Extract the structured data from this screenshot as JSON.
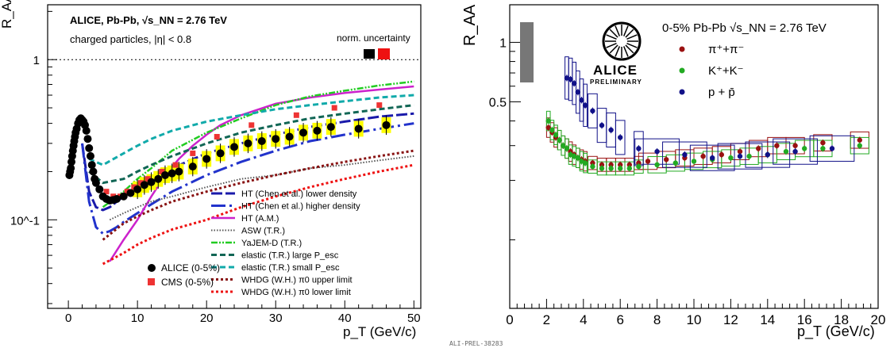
{
  "caption": "ALI-PREL-38283",
  "chart_data": [
    {
      "type": "scatter",
      "title": "ALICE, Pb-Pb, √s_NN = 2.76 TeV",
      "subtitle": "charged particles, |η| < 0.8",
      "norm_label": "norm. uncertainty",
      "xlabel": "p_T (GeV/c)",
      "ylabel": "R_AA",
      "xlim": [
        -3,
        51
      ],
      "ylim": [
        0.028,
        2.2
      ],
      "log_y": true,
      "x_ticks": [
        "0",
        "10",
        "20",
        "30",
        "40",
        "50"
      ],
      "y_ticks": [
        "10^-1",
        "1"
      ],
      "colors": {
        "alice": "#000000",
        "cms": "#ee3333",
        "yellow": "#ffff00",
        "magenta": "#cc22cc",
        "blue": "#1a1aaa",
        "green": "#22cc22",
        "teal": "#11aaaa",
        "darkteal": "#116655",
        "darkred": "#881111",
        "red": "#ee1111",
        "gray": "#555555"
      },
      "series": [
        {
          "name": "ALICE (0-5%)",
          "x": [
            0.15,
            0.25,
            0.35,
            0.45,
            0.55,
            0.65,
            0.75,
            0.85,
            0.95,
            1.05,
            1.2,
            1.4,
            1.6,
            1.8,
            2.0,
            2.2,
            2.4,
            2.6,
            2.8,
            3.0,
            3.2,
            3.4,
            3.6,
            3.8,
            4.0,
            4.5,
            5.0,
            5.5,
            6.0,
            6.5,
            7.0,
            8.0,
            9.0,
            10.0,
            11.0,
            12.0,
            13.0,
            14.0,
            15.0,
            16.0,
            18.0,
            20.0,
            22.0,
            24.0,
            26.0,
            28.0,
            30.0,
            32.0,
            34.0,
            36.0,
            38.0,
            42.0,
            46.0
          ],
          "y": [
            0.19,
            0.2,
            0.21,
            0.23,
            0.25,
            0.27,
            0.29,
            0.31,
            0.33,
            0.35,
            0.37,
            0.4,
            0.42,
            0.43,
            0.42,
            0.41,
            0.39,
            0.36,
            0.32,
            0.28,
            0.25,
            0.22,
            0.2,
            0.18,
            0.17,
            0.155,
            0.14,
            0.135,
            0.132,
            0.133,
            0.135,
            0.14,
            0.147,
            0.155,
            0.165,
            0.172,
            0.18,
            0.19,
            0.195,
            0.2,
            0.215,
            0.24,
            0.26,
            0.285,
            0.3,
            0.31,
            0.32,
            0.33,
            0.35,
            0.36,
            0.38,
            0.37,
            0.39
          ]
        },
        {
          "name": "CMS (0-5%)",
          "x": [
            5.5,
            6.5,
            7.5,
            8.5,
            9.5,
            10.5,
            11.5,
            13.5,
            15.5,
            18.0,
            21.5,
            26.5,
            33.0,
            38.5,
            45.0
          ],
          "y": [
            0.15,
            0.14,
            0.14,
            0.15,
            0.16,
            0.17,
            0.18,
            0.2,
            0.22,
            0.26,
            0.33,
            0.39,
            0.45,
            0.5,
            0.52
          ]
        },
        {
          "name": "HT (Chen et al.) lower density",
          "x": [
            2,
            3,
            4,
            5,
            6,
            7,
            8,
            10,
            12,
            15,
            20,
            25,
            30,
            35,
            40,
            45,
            50
          ],
          "y": [
            0.3,
            0.15,
            0.12,
            0.115,
            0.12,
            0.13,
            0.14,
            0.16,
            0.18,
            0.21,
            0.26,
            0.3,
            0.34,
            0.38,
            0.41,
            0.44,
            0.46
          ]
        },
        {
          "name": "HT (Chen et al.) higher density",
          "x": [
            2,
            3,
            4,
            5,
            6,
            7,
            8,
            10,
            12,
            15,
            20,
            25,
            30,
            35,
            40,
            45,
            50
          ],
          "y": [
            0.3,
            0.13,
            0.09,
            0.082,
            0.085,
            0.09,
            0.097,
            0.11,
            0.125,
            0.15,
            0.19,
            0.23,
            0.27,
            0.31,
            0.34,
            0.37,
            0.4
          ]
        },
        {
          "name": "HT (A.M.)",
          "x": [
            6,
            8,
            10,
            12,
            14,
            16,
            18,
            20,
            22,
            25,
            30,
            35,
            40,
            45,
            50
          ],
          "y": [
            0.055,
            0.075,
            0.1,
            0.14,
            0.19,
            0.24,
            0.29,
            0.34,
            0.39,
            0.45,
            0.53,
            0.58,
            0.62,
            0.65,
            0.68
          ]
        },
        {
          "name": "ASW (T.R.)",
          "x": [
            6,
            8,
            10,
            12,
            15,
            20,
            25,
            30,
            35,
            40,
            45,
            50
          ],
          "y": [
            0.1,
            0.11,
            0.12,
            0.13,
            0.14,
            0.16,
            0.18,
            0.19,
            0.21,
            0.22,
            0.235,
            0.25
          ]
        },
        {
          "name": "YaJEM-D (T.R.)",
          "x": [
            5,
            8,
            10,
            12,
            15,
            20,
            25,
            30,
            35,
            40,
            45,
            50
          ],
          "y": [
            0.12,
            0.15,
            0.18,
            0.21,
            0.27,
            0.35,
            0.43,
            0.52,
            0.59,
            0.64,
            0.69,
            0.73
          ]
        },
        {
          "name": "elastic (T.R.) large P_esc",
          "x": [
            3,
            5,
            8,
            10,
            12,
            15,
            20,
            25,
            30,
            35,
            40,
            45,
            50
          ],
          "y": [
            0.2,
            0.17,
            0.18,
            0.2,
            0.22,
            0.25,
            0.3,
            0.35,
            0.39,
            0.43,
            0.46,
            0.49,
            0.52
          ]
        },
        {
          "name": "elastic (T.R.) small P_esc",
          "x": [
            3,
            5,
            8,
            10,
            12,
            15,
            20,
            25,
            30,
            35,
            40,
            45,
            50
          ],
          "y": [
            0.24,
            0.22,
            0.26,
            0.29,
            0.32,
            0.36,
            0.41,
            0.45,
            0.49,
            0.52,
            0.55,
            0.58,
            0.6
          ]
        },
        {
          "name": "WHDG (W.H.) π0 upper limit",
          "x": [
            5,
            8,
            10,
            12,
            15,
            20,
            25,
            30,
            35,
            40,
            45,
            50
          ],
          "y": [
            0.075,
            0.095,
            0.105,
            0.115,
            0.13,
            0.15,
            0.17,
            0.19,
            0.21,
            0.23,
            0.25,
            0.27
          ]
        },
        {
          "name": "WHDG (W.H.) π0 lower limit",
          "x": [
            5,
            8,
            10,
            12,
            15,
            20,
            25,
            30,
            35,
            40,
            45,
            50
          ],
          "y": [
            0.053,
            0.062,
            0.07,
            0.077,
            0.087,
            0.1,
            0.12,
            0.14,
            0.16,
            0.18,
            0.2,
            0.22
          ]
        }
      ],
      "legend": {
        "position": "bottom-right"
      }
    },
    {
      "type": "scatter",
      "title": "0-5% Pb-Pb √s_NN = 2.76 TeV",
      "logo_text": "ALICE",
      "logo_subtext": "PRELIMINARY",
      "xlabel": "p_T (GeV/c)",
      "ylabel": "R_AA",
      "xlim": [
        0,
        20
      ],
      "ylim": [
        0.045,
        1.55
      ],
      "log_y": true,
      "x_ticks": [
        "0",
        "2",
        "4",
        "6",
        "8",
        "10",
        "12",
        "14",
        "16",
        "18",
        "20"
      ],
      "y_ticks": [
        "0.5",
        "1"
      ],
      "colors": {
        "pion": "#9a1111",
        "kaon": "#22aa22",
        "proton": "#111188",
        "gray": "#777777"
      },
      "series": [
        {
          "name": "π⁺+π⁻",
          "x": [
            2.1,
            2.3,
            2.5,
            2.7,
            2.9,
            3.1,
            3.3,
            3.5,
            3.7,
            3.9,
            4.1,
            4.5,
            5.0,
            5.5,
            6.0,
            6.5,
            7.0,
            7.5,
            8.5,
            9.5,
            10.5,
            11.5,
            12.5,
            13.5,
            14.5,
            15.5,
            17.0,
            19.0
          ],
          "y": [
            0.37,
            0.35,
            0.33,
            0.32,
            0.3,
            0.29,
            0.28,
            0.27,
            0.26,
            0.255,
            0.25,
            0.245,
            0.24,
            0.24,
            0.24,
            0.24,
            0.245,
            0.25,
            0.255,
            0.26,
            0.265,
            0.27,
            0.28,
            0.29,
            0.3,
            0.3,
            0.31,
            0.32
          ]
        },
        {
          "name": "K⁺+K⁻",
          "x": [
            2.1,
            2.3,
            2.5,
            2.7,
            2.9,
            3.1,
            3.3,
            3.5,
            3.7,
            3.9,
            4.1,
            4.5,
            5.0,
            5.5,
            6.0,
            6.5,
            7.0,
            8.0,
            9.0,
            10.0,
            11.0,
            12.0,
            13.0,
            14.0,
            15.0,
            16.0,
            17.0,
            19.0
          ],
          "y": [
            0.4,
            0.36,
            0.34,
            0.32,
            0.3,
            0.29,
            0.27,
            0.265,
            0.26,
            0.25,
            0.245,
            0.235,
            0.23,
            0.23,
            0.23,
            0.23,
            0.235,
            0.24,
            0.245,
            0.25,
            0.255,
            0.26,
            0.265,
            0.27,
            0.28,
            0.29,
            0.29,
            0.3
          ]
        },
        {
          "name": "p + p̄",
          "x": [
            3.1,
            3.3,
            3.5,
            3.7,
            3.9,
            4.1,
            4.5,
            5.0,
            5.5,
            6.0,
            7.0,
            8.0,
            9.5,
            11.0,
            12.5,
            14.0,
            15.5,
            17.5
          ],
          "y": [
            0.66,
            0.65,
            0.62,
            0.56,
            0.51,
            0.48,
            0.45,
            0.38,
            0.36,
            0.33,
            0.29,
            0.28,
            0.27,
            0.26,
            0.265,
            0.27,
            0.28,
            0.29
          ]
        }
      ],
      "legend": {
        "position": "top-right"
      }
    }
  ]
}
